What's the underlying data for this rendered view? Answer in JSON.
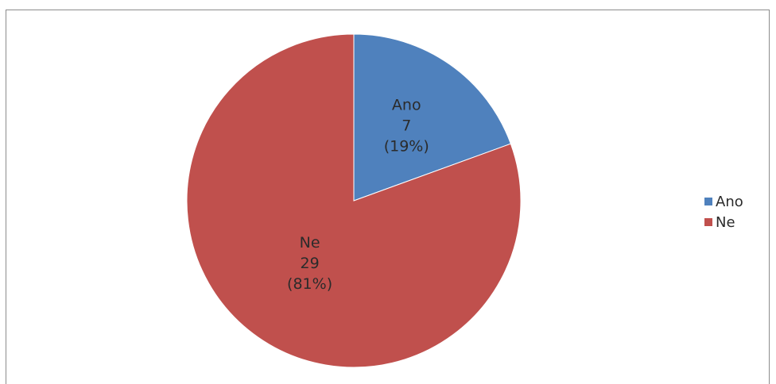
{
  "chart_data": {
    "type": "pie",
    "title": "",
    "slices": [
      {
        "label": "Ano",
        "value": 7,
        "percent_label": "(19%)",
        "color": "#4f81bd"
      },
      {
        "label": "Ne",
        "value": 29,
        "percent_label": "(81%)",
        "color": "#c0504d"
      }
    ],
    "legend": {
      "placement": "right",
      "items": [
        "Ano",
        "Ne"
      ]
    }
  }
}
